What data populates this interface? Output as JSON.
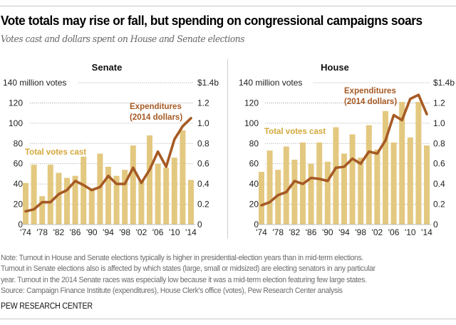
{
  "header": {
    "title": "Vote totals may rise or fall, but spending on congressional campaigns soars",
    "subtitle": "Votes cast and dollars spent on House and Senate elections"
  },
  "colors": {
    "bars": "#e3c880",
    "line": "#a65a24",
    "votes_label": "#d4a93c",
    "expend_label": "#a65a24",
    "grid": "#9a9a9a"
  },
  "chart_data": [
    {
      "type": "bar",
      "title": "Senate",
      "categories": [
        "1974",
        "1976",
        "1978",
        "1980",
        "1982",
        "1984",
        "1986",
        "1988",
        "1990",
        "1992",
        "1994",
        "1996",
        "1998",
        "2000",
        "2002",
        "2004",
        "2006",
        "2008",
        "2010",
        "2012",
        "2014"
      ],
      "x_tick_labels": [
        "'74",
        "'78",
        "'82",
        "'86",
        "'90",
        "'94",
        "'98",
        "'02",
        "'06",
        "'10",
        "'14"
      ],
      "left_axis": {
        "label": "million votes",
        "ylim": [
          0,
          140
        ],
        "ticks": [
          "140 million votes",
          "120",
          "100",
          "80",
          "60",
          "40",
          "20",
          "0"
        ]
      },
      "right_axis": {
        "label": "billion dollars",
        "ylim": [
          0,
          1.4
        ],
        "ticks": [
          "$1.4b",
          "1.2",
          "1.0",
          "0.8",
          "0.6",
          "0.4",
          "0.2",
          "0"
        ]
      },
      "grid": true,
      "series": [
        {
          "name": "Total votes cast",
          "type": "bar",
          "axis": "left",
          "values": [
            41,
            59,
            28,
            59,
            51,
            46,
            48,
            67,
            34,
            70,
            57,
            48,
            54,
            78,
            43,
            88,
            60,
            56,
            66,
            93,
            44
          ]
        },
        {
          "name": "Expenditures (2014 dollars)",
          "type": "line",
          "axis": "right",
          "values": [
            0.13,
            0.15,
            0.22,
            0.22,
            0.3,
            0.34,
            0.43,
            0.39,
            0.34,
            0.37,
            0.48,
            0.4,
            0.4,
            0.56,
            0.41,
            0.54,
            0.72,
            0.57,
            0.84,
            0.97,
            1.05
          ]
        }
      ],
      "annotations": {
        "votes": "Total votes cast",
        "expend_1": "Expenditures",
        "expend_2": "(2014 dollars)"
      }
    },
    {
      "type": "bar",
      "title": "House",
      "categories": [
        "1974",
        "1976",
        "1978",
        "1980",
        "1982",
        "1984",
        "1986",
        "1988",
        "1990",
        "1992",
        "1994",
        "1996",
        "1998",
        "2000",
        "2002",
        "2004",
        "2006",
        "2008",
        "2010",
        "2012",
        "2014"
      ],
      "x_tick_labels": [
        "'74",
        "'78",
        "'82",
        "'86",
        "'90",
        "'94",
        "'98",
        "'02",
        "'06",
        "'10",
        "'14"
      ],
      "left_axis": {
        "label": "million votes",
        "ylim": [
          0,
          140
        ],
        "ticks": [
          "140 million votes",
          "120",
          "100",
          "80",
          "60",
          "40",
          "20",
          "0"
        ]
      },
      "right_axis": {
        "label": "billion dollars",
        "ylim": [
          0,
          1.4
        ],
        "ticks": [
          "$1.4b",
          "1.2",
          "1.0",
          "0.8",
          "0.6",
          "0.4",
          "0.2",
          "0"
        ]
      },
      "grid": true,
      "series": [
        {
          "name": "Total votes cast",
          "type": "bar",
          "axis": "left",
          "values": [
            52,
            73,
            54,
            77,
            64,
            81,
            60,
            81,
            62,
            96,
            70,
            89,
            66,
            98,
            74,
            112,
            81,
            121,
            86,
            121,
            78
          ]
        },
        {
          "name": "Expenditures (2014 dollars)",
          "type": "line",
          "axis": "right",
          "values": [
            0.19,
            0.22,
            0.29,
            0.32,
            0.43,
            0.4,
            0.46,
            0.45,
            0.43,
            0.56,
            0.57,
            0.65,
            0.6,
            0.72,
            0.7,
            0.83,
            1.08,
            1.03,
            1.24,
            1.28,
            1.09
          ]
        }
      ],
      "annotations": {
        "votes": "Total votes cast",
        "expend_1": "Expenditures",
        "expend_2": "(2014 dollars)"
      }
    }
  ],
  "footer": {
    "note_lines": [
      "Note: Turnout in House and Senate elections typically is higher in presidential-election years than in mid-term elections.",
      "Turnout in Senate elections also is affected by which states (large, small or midsized) are electing senators in any particular",
      "year. Turnout in the 2014 Senate races was especially low because it was a mid-term election featuring few large states.",
      "Source: Campaign Finance Institute (expenditures), House Clerk's office (votes), Pew Research Center analysis"
    ],
    "brand": "PEW RESEARCH CENTER"
  }
}
